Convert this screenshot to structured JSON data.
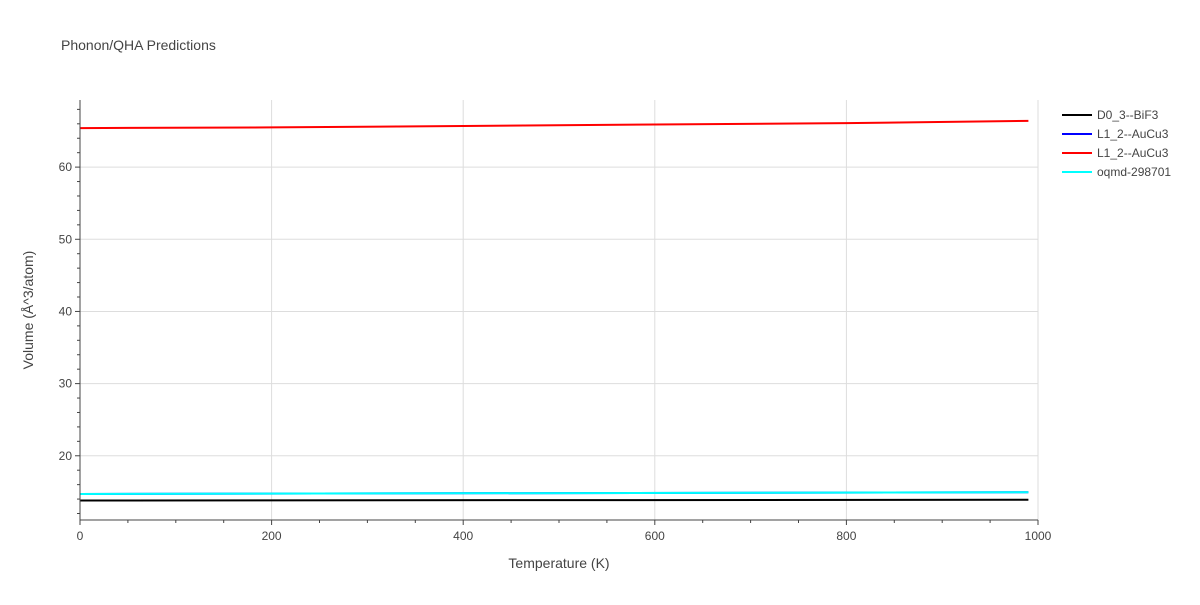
{
  "chart_data": {
    "type": "line",
    "title": "Phonon/QHA Predictions",
    "xlabel": "Temperature (K)",
    "ylabel": "Volume (Å^3/atom)",
    "xlim": [
      0,
      1000
    ],
    "ylim": [
      11.1,
      69.3
    ],
    "x_ticks": [
      0,
      200,
      400,
      600,
      800,
      1000
    ],
    "y_ticks": [
      20,
      30,
      40,
      50,
      60
    ],
    "grid": true,
    "legend_position": "top-right",
    "series": [
      {
        "name": "D0_3--BiF3",
        "color": "#000000",
        "x": [
          0,
          990
        ],
        "y": [
          13.8,
          13.9
        ]
      },
      {
        "name": "L1_2--AuCu3",
        "color": "#0000ff",
        "x": [
          0,
          990
        ],
        "y": [
          14.7,
          14.95
        ]
      },
      {
        "name": "L1_2--AuCu3",
        "color": "#ff0000",
        "x": [
          0,
          200,
          400,
          600,
          800,
          990
        ],
        "y": [
          65.4,
          65.5,
          65.7,
          65.9,
          66.1,
          66.4
        ]
      },
      {
        "name": "oqmd-298701",
        "color": "#00ffff",
        "x": [
          0,
          990
        ],
        "y": [
          14.7,
          14.95
        ]
      }
    ]
  }
}
